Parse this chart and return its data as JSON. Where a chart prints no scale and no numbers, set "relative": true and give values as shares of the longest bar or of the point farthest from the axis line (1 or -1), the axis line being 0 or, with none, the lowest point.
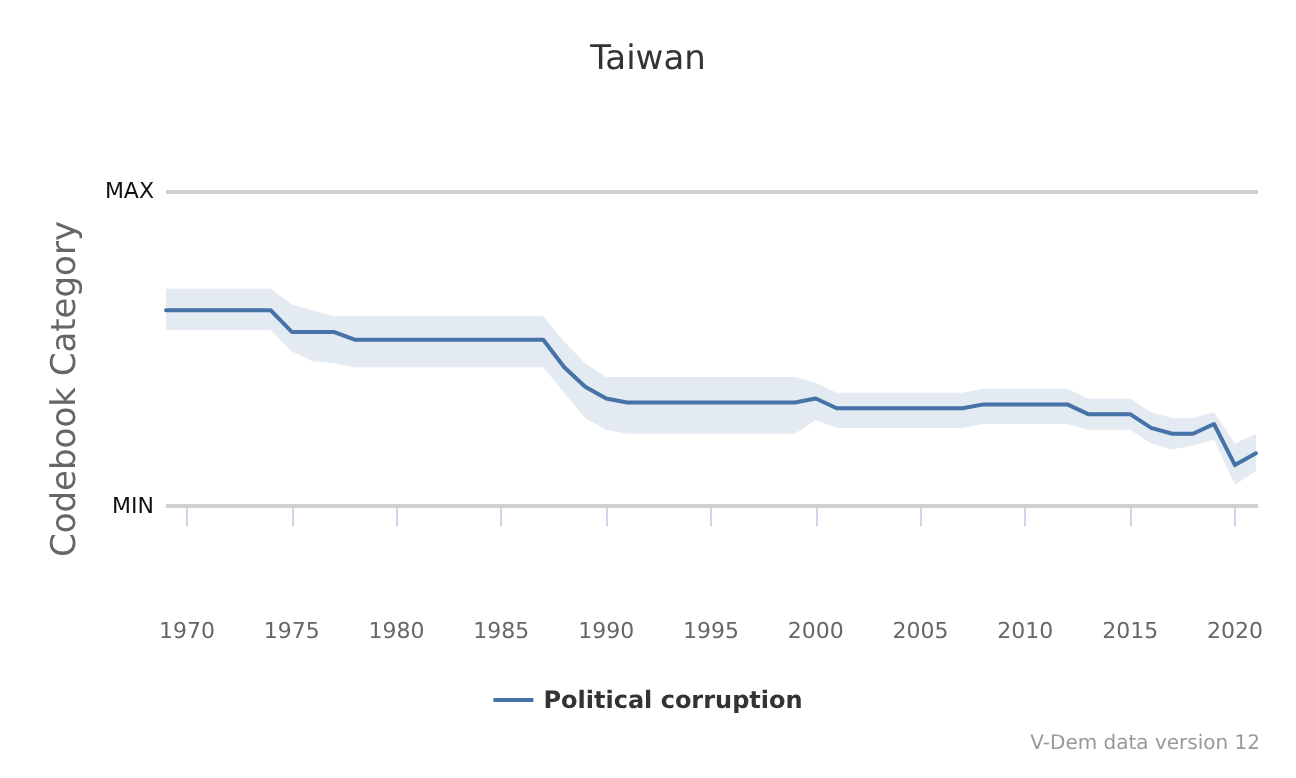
{
  "chart_data": {
    "type": "line",
    "title": "Taiwan",
    "ylabel": "Codebook Category",
    "relative": true,
    "x": [
      1969,
      1970,
      1971,
      1972,
      1973,
      1974,
      1975,
      1976,
      1977,
      1978,
      1979,
      1980,
      1981,
      1982,
      1983,
      1984,
      1985,
      1986,
      1987,
      1988,
      1989,
      1990,
      1991,
      1992,
      1993,
      1994,
      1995,
      1996,
      1997,
      1998,
      1999,
      2000,
      2001,
      2002,
      2003,
      2004,
      2005,
      2006,
      2007,
      2008,
      2009,
      2010,
      2011,
      2012,
      2013,
      2014,
      2015,
      2016,
      2017,
      2018,
      2019,
      2020,
      2021
    ],
    "series": [
      {
        "name": "Political corruption",
        "color": "#4572a7",
        "values": [
          1,
          1,
          1,
          1,
          1,
          1,
          0.89,
          0.89,
          0.89,
          0.85,
          0.85,
          0.85,
          0.85,
          0.85,
          0.85,
          0.85,
          0.85,
          0.85,
          0.85,
          0.71,
          0.61,
          0.55,
          0.53,
          0.53,
          0.53,
          0.53,
          0.53,
          0.53,
          0.53,
          0.53,
          0.53,
          0.55,
          0.5,
          0.5,
          0.5,
          0.5,
          0.5,
          0.5,
          0.5,
          0.52,
          0.52,
          0.52,
          0.52,
          0.52,
          0.47,
          0.47,
          0.47,
          0.4,
          0.37,
          0.37,
          0.42,
          0.21,
          0.27
        ],
        "upper": [
          1.11,
          1.11,
          1.11,
          1.11,
          1.11,
          1.11,
          1.03,
          1,
          0.97,
          0.97,
          0.97,
          0.97,
          0.97,
          0.97,
          0.97,
          0.97,
          0.97,
          0.97,
          0.97,
          0.84,
          0.73,
          0.66,
          0.66,
          0.66,
          0.66,
          0.66,
          0.66,
          0.66,
          0.66,
          0.66,
          0.66,
          0.63,
          0.58,
          0.58,
          0.58,
          0.58,
          0.58,
          0.58,
          0.58,
          0.6,
          0.6,
          0.6,
          0.6,
          0.6,
          0.55,
          0.55,
          0.55,
          0.48,
          0.45,
          0.45,
          0.48,
          0.32,
          0.37
        ],
        "lower": [
          0.9,
          0.9,
          0.9,
          0.9,
          0.9,
          0.9,
          0.79,
          0.74,
          0.73,
          0.71,
          0.71,
          0.71,
          0.71,
          0.71,
          0.71,
          0.71,
          0.71,
          0.71,
          0.71,
          0.58,
          0.45,
          0.39,
          0.37,
          0.37,
          0.37,
          0.37,
          0.37,
          0.37,
          0.37,
          0.37,
          0.37,
          0.44,
          0.4,
          0.4,
          0.4,
          0.4,
          0.4,
          0.4,
          0.4,
          0.42,
          0.42,
          0.42,
          0.42,
          0.42,
          0.39,
          0.39,
          0.39,
          0.32,
          0.29,
          0.31,
          0.34,
          0.11,
          0.18
        ]
      }
    ],
    "xlim": [
      1969,
      2021.1
    ],
    "xticks": [
      1970,
      1975,
      1980,
      1985,
      1990,
      1995,
      2000,
      2005,
      2010,
      2015,
      2020
    ],
    "ref_lines": [
      {
        "axis": "y",
        "value": 1.61,
        "label": "MAX",
        "color": "#d0d0d0"
      },
      {
        "axis": "y",
        "value": 0,
        "label": "MIN",
        "color": "#d0d0d0"
      }
    ],
    "legend": "bottom",
    "marker": "none",
    "line_style": "solid",
    "annotations": [
      "V-Dem data version 12"
    ]
  }
}
